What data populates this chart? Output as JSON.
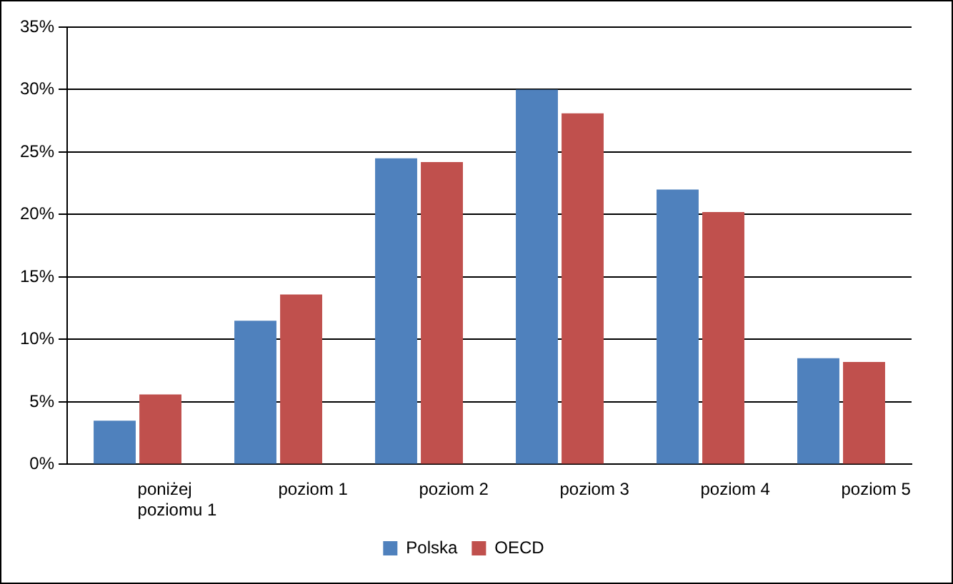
{
  "chart_data": {
    "type": "bar",
    "categories": [
      "poniżej poziomu 1",
      "poziom 1",
      "poziom 2",
      "poziom 3",
      "poziom 4",
      "poziom 5"
    ],
    "series": [
      {
        "name": "Polska",
        "color": "#4f81bd",
        "values": [
          3.5,
          11.5,
          24.5,
          30,
          22,
          8.5
        ]
      },
      {
        "name": "OECD",
        "color": "#c0504d",
        "values": [
          5.6,
          13.6,
          24.2,
          28.1,
          20.2,
          8.2
        ]
      }
    ],
    "ylim": [
      0,
      35
    ],
    "yticks": [
      {
        "value": 0,
        "label": "0%"
      },
      {
        "value": 5,
        "label": "5%"
      },
      {
        "value": 10,
        "label": "10%"
      },
      {
        "value": 15,
        "label": "15%"
      },
      {
        "value": 20,
        "label": "20%"
      },
      {
        "value": 25,
        "label": "25%"
      },
      {
        "value": 30,
        "label": "30%"
      },
      {
        "value": 35,
        "label": "35%"
      }
    ],
    "grid": "y",
    "legend": "bottom"
  }
}
